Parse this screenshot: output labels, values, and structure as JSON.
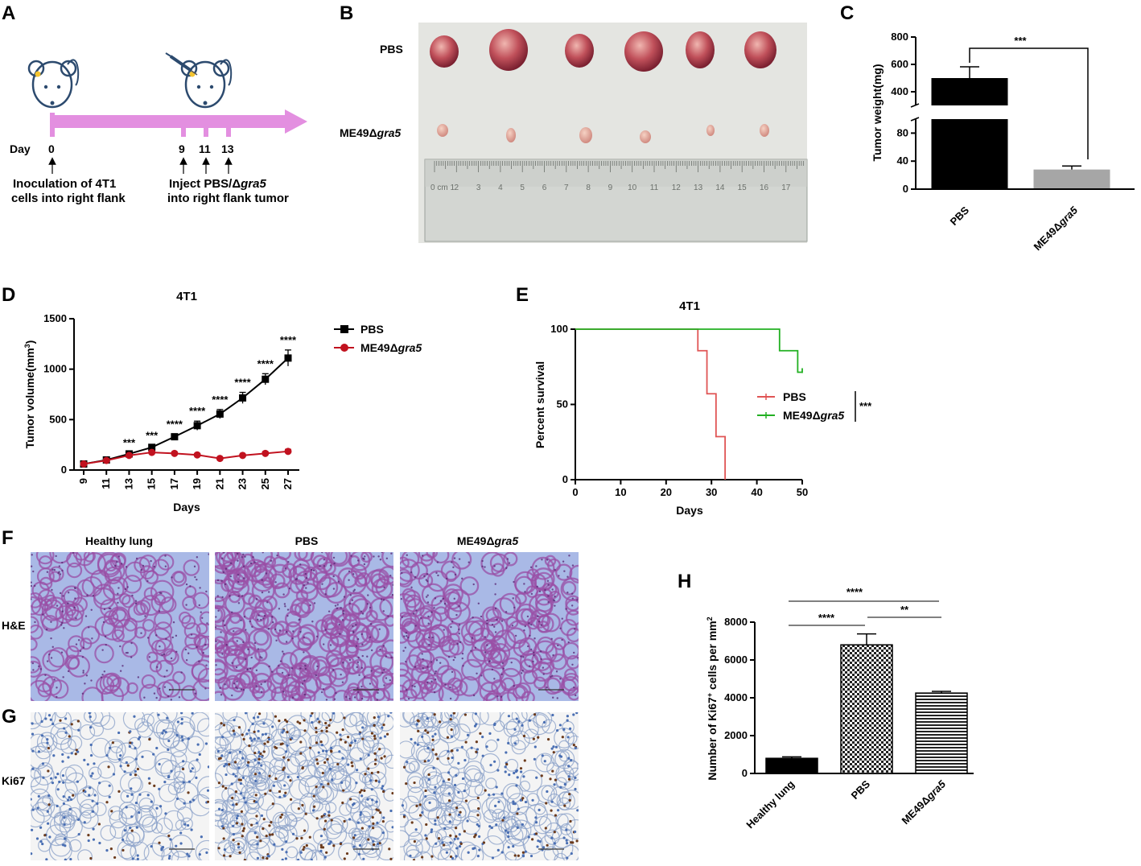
{
  "panels": {
    "a": "A",
    "b": "B",
    "c": "C",
    "d": "D",
    "e": "E",
    "f": "F",
    "g": "G",
    "h": "H"
  },
  "timeline": {
    "day_label": "Day",
    "days": [
      "0",
      "9",
      "11",
      "13"
    ],
    "note_left_1": "Inoculation of 4T1",
    "note_left_2": "cells into right flank",
    "note_right_1a": "Inject PBS/",
    "note_right_1b": "Δ",
    "note_right_1c": "gra5",
    "note_right_2": "into right flank tumor",
    "colors": {
      "arrow": "#e38fe0",
      "mouse": "#2c4a6e",
      "spot": "#f4c430"
    }
  },
  "photo": {
    "row_labels": {
      "top": "PBS",
      "bottom_a": "ME49",
      "bottom_b": "Δ",
      "bottom_c": "gra5"
    },
    "ruler_numbers": [
      "0 cm 1",
      "2",
      "3",
      "4",
      "5",
      "6",
      "7",
      "8",
      "9",
      "10",
      "11",
      "12",
      "13",
      "14",
      "15",
      "16",
      "17"
    ]
  },
  "histology": {
    "col_headers": [
      "Healthy lung",
      "PBS",
      "ME49"
    ],
    "col_header_italic": "gra5",
    "col_header_delta": "Δ",
    "row_labels": {
      "he": "H&E",
      "ki67": "Ki67"
    },
    "colors": {
      "he_bg": "#a9b9e6",
      "he_tissue": "#9a4fa6",
      "ki_bg": "#f4f4f4",
      "ki_blue": "#4a6fb3",
      "ki_brown": "#6b3a1b"
    }
  },
  "chart_data": [
    {
      "panel": "C",
      "type": "bar",
      "categories": [
        "PBS",
        "ME49Δgra5"
      ],
      "values": [
        500,
        28
      ],
      "errors": [
        82,
        5
      ],
      "ylabel": "Tumor weight(mg)",
      "y_ticks": [
        "0",
        "40",
        "80",
        "400",
        "600",
        "800"
      ],
      "axis_break": [
        100,
        300
      ],
      "ylim": [
        0,
        800
      ],
      "significance": [
        "***"
      ],
      "colors": [
        "#000000",
        "#a6a6a6"
      ]
    },
    {
      "panel": "D",
      "type": "line",
      "title": "4T1",
      "xlabel": "Days",
      "ylabel": "Tumor volume(mm3)",
      "x": [
        9,
        11,
        13,
        15,
        17,
        19,
        21,
        23,
        25,
        27
      ],
      "x_ticks": [
        "9",
        "11",
        "13",
        "15",
        "17",
        "19",
        "21",
        "23",
        "25",
        "27"
      ],
      "y_ticks": [
        "0",
        "500",
        "1000",
        "1500"
      ],
      "ylim": [
        0,
        1500
      ],
      "series": [
        {
          "name": "PBS",
          "values": [
            60,
            100,
            160,
            225,
            330,
            440,
            555,
            715,
            900,
            1110
          ],
          "errors": [
            10,
            10,
            12,
            20,
            25,
            45,
            45,
            55,
            55,
            80
          ],
          "color": "#000000",
          "marker": "square"
        },
        {
          "name": "ME49Δgra5",
          "values": [
            60,
            95,
            145,
            175,
            165,
            150,
            115,
            145,
            165,
            185
          ],
          "errors": [
            8,
            8,
            10,
            12,
            12,
            12,
            10,
            10,
            15,
            20
          ],
          "color": "#c1121f",
          "marker": "circle"
        }
      ],
      "annotations": [
        "***",
        "***",
        "****",
        "****",
        "****",
        "****",
        "****",
        "****"
      ],
      "legend_position": "right"
    },
    {
      "panel": "E",
      "type": "line",
      "title": "4T1",
      "xlabel": "Days",
      "ylabel": "Percent survival",
      "x_ticks": [
        "0",
        "10",
        "20",
        "30",
        "40",
        "50"
      ],
      "y_ticks": [
        "0",
        "50",
        "100"
      ],
      "xlim": [
        0,
        50
      ],
      "ylim": [
        0,
        100
      ],
      "series": [
        {
          "name": "PBS",
          "steps": [
            [
              0,
              100
            ],
            [
              27,
              100
            ],
            [
              27,
              85.7
            ],
            [
              29,
              85.7
            ],
            [
              29,
              57.1
            ],
            [
              31,
              57.1
            ],
            [
              31,
              28.6
            ],
            [
              33,
              28.6
            ],
            [
              33,
              0
            ]
          ],
          "color": "#e05555"
        },
        {
          "name": "ME49Δgra5",
          "steps": [
            [
              0,
              100
            ],
            [
              45,
              100
            ],
            [
              45,
              85.7
            ],
            [
              49,
              85.7
            ],
            [
              49,
              71.4
            ],
            [
              50,
              71.4
            ]
          ],
          "color": "#22b022"
        }
      ],
      "significance": "***",
      "legend_position": "center-right"
    },
    {
      "panel": "H",
      "type": "bar",
      "categories": [
        "Healthy lung",
        "PBS",
        "ME49Δgra5"
      ],
      "values": [
        800,
        6800,
        4250
      ],
      "errors": [
        80,
        580,
        90
      ],
      "ylabel": "Number of Ki67+ cells per mm2",
      "y_ticks": [
        "0",
        "2000",
        "4000",
        "6000",
        "8000"
      ],
      "ylim": [
        0,
        8000
      ],
      "patterns": [
        "solid",
        "checkered",
        "horizontal-lines"
      ],
      "significance": [
        "****",
        "****",
        "**"
      ]
    }
  ]
}
